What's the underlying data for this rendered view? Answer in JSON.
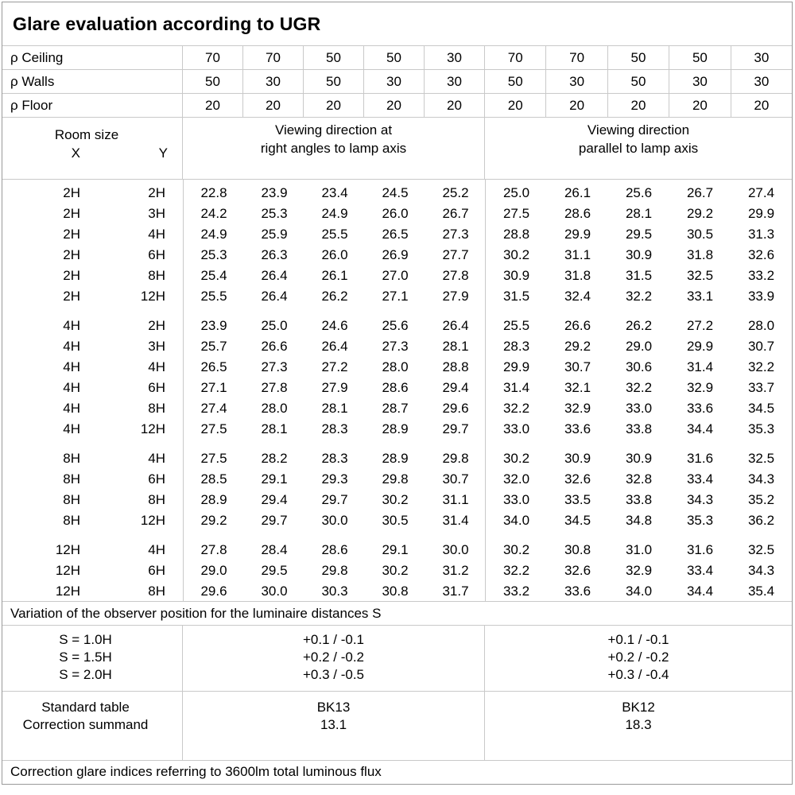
{
  "title": "Glare evaluation according to UGR",
  "grid_color": "#c9c9c9",
  "border_color": "#9a9a9a",
  "reflectances": {
    "rows": [
      {
        "label": "ρ Ceiling",
        "values": [
          70,
          70,
          50,
          50,
          30,
          70,
          70,
          50,
          50,
          30
        ]
      },
      {
        "label": "ρ Walls",
        "values": [
          50,
          30,
          50,
          30,
          30,
          50,
          30,
          50,
          30,
          30
        ]
      },
      {
        "label": "ρ Floor",
        "values": [
          20,
          20,
          20,
          20,
          20,
          20,
          20,
          20,
          20,
          20
        ]
      }
    ]
  },
  "header": {
    "room_size_label": "Room size",
    "x_label": "X",
    "y_label": "Y",
    "group1_line1": "Viewing direction at",
    "group1_line2": "right angles to lamp axis",
    "group2_line1": "Viewing direction",
    "group2_line2": "parallel to lamp axis"
  },
  "ugr_table": {
    "groups": [
      {
        "rows": [
          {
            "x": "2H",
            "y": "2H",
            "right_angles": [
              "22.8",
              "23.9",
              "23.4",
              "24.5",
              "25.2"
            ],
            "parallel": [
              "25.0",
              "26.1",
              "25.6",
              "26.7",
              "27.4"
            ]
          },
          {
            "x": "2H",
            "y": "3H",
            "right_angles": [
              "24.2",
              "25.3",
              "24.9",
              "26.0",
              "26.7"
            ],
            "parallel": [
              "27.5",
              "28.6",
              "28.1",
              "29.2",
              "29.9"
            ]
          },
          {
            "x": "2H",
            "y": "4H",
            "right_angles": [
              "24.9",
              "25.9",
              "25.5",
              "26.5",
              "27.3"
            ],
            "parallel": [
              "28.8",
              "29.9",
              "29.5",
              "30.5",
              "31.3"
            ]
          },
          {
            "x": "2H",
            "y": "6H",
            "right_angles": [
              "25.3",
              "26.3",
              "26.0",
              "26.9",
              "27.7"
            ],
            "parallel": [
              "30.2",
              "31.1",
              "30.9",
              "31.8",
              "32.6"
            ]
          },
          {
            "x": "2H",
            "y": "8H",
            "right_angles": [
              "25.4",
              "26.4",
              "26.1",
              "27.0",
              "27.8"
            ],
            "parallel": [
              "30.9",
              "31.8",
              "31.5",
              "32.5",
              "33.2"
            ]
          },
          {
            "x": "2H",
            "y": "12H",
            "right_angles": [
              "25.5",
              "26.4",
              "26.2",
              "27.1",
              "27.9"
            ],
            "parallel": [
              "31.5",
              "32.4",
              "32.2",
              "33.1",
              "33.9"
            ]
          }
        ]
      },
      {
        "rows": [
          {
            "x": "4H",
            "y": "2H",
            "right_angles": [
              "23.9",
              "25.0",
              "24.6",
              "25.6",
              "26.4"
            ],
            "parallel": [
              "25.5",
              "26.6",
              "26.2",
              "27.2",
              "28.0"
            ]
          },
          {
            "x": "4H",
            "y": "3H",
            "right_angles": [
              "25.7",
              "26.6",
              "26.4",
              "27.3",
              "28.1"
            ],
            "parallel": [
              "28.3",
              "29.2",
              "29.0",
              "29.9",
              "30.7"
            ]
          },
          {
            "x": "4H",
            "y": "4H",
            "right_angles": [
              "26.5",
              "27.3",
              "27.2",
              "28.0",
              "28.8"
            ],
            "parallel": [
              "29.9",
              "30.7",
              "30.6",
              "31.4",
              "32.2"
            ]
          },
          {
            "x": "4H",
            "y": "6H",
            "right_angles": [
              "27.1",
              "27.8",
              "27.9",
              "28.6",
              "29.4"
            ],
            "parallel": [
              "31.4",
              "32.1",
              "32.2",
              "32.9",
              "33.7"
            ]
          },
          {
            "x": "4H",
            "y": "8H",
            "right_angles": [
              "27.4",
              "28.0",
              "28.1",
              "28.7",
              "29.6"
            ],
            "parallel": [
              "32.2",
              "32.9",
              "33.0",
              "33.6",
              "34.5"
            ]
          },
          {
            "x": "4H",
            "y": "12H",
            "right_angles": [
              "27.5",
              "28.1",
              "28.3",
              "28.9",
              "29.7"
            ],
            "parallel": [
              "33.0",
              "33.6",
              "33.8",
              "34.4",
              "35.3"
            ]
          }
        ]
      },
      {
        "rows": [
          {
            "x": "8H",
            "y": "4H",
            "right_angles": [
              "27.5",
              "28.2",
              "28.3",
              "28.9",
              "29.8"
            ],
            "parallel": [
              "30.2",
              "30.9",
              "30.9",
              "31.6",
              "32.5"
            ]
          },
          {
            "x": "8H",
            "y": "6H",
            "right_angles": [
              "28.5",
              "29.1",
              "29.3",
              "29.8",
              "30.7"
            ],
            "parallel": [
              "32.0",
              "32.6",
              "32.8",
              "33.4",
              "34.3"
            ]
          },
          {
            "x": "8H",
            "y": "8H",
            "right_angles": [
              "28.9",
              "29.4",
              "29.7",
              "30.2",
              "31.1"
            ],
            "parallel": [
              "33.0",
              "33.5",
              "33.8",
              "34.3",
              "35.2"
            ]
          },
          {
            "x": "8H",
            "y": "12H",
            "right_angles": [
              "29.2",
              "29.7",
              "30.0",
              "30.5",
              "31.4"
            ],
            "parallel": [
              "34.0",
              "34.5",
              "34.8",
              "35.3",
              "36.2"
            ]
          }
        ]
      },
      {
        "rows": [
          {
            "x": "12H",
            "y": "4H",
            "right_angles": [
              "27.8",
              "28.4",
              "28.6",
              "29.1",
              "30.0"
            ],
            "parallel": [
              "30.2",
              "30.8",
              "31.0",
              "31.6",
              "32.5"
            ]
          },
          {
            "x": "12H",
            "y": "6H",
            "right_angles": [
              "29.0",
              "29.5",
              "29.8",
              "30.2",
              "31.2"
            ],
            "parallel": [
              "32.2",
              "32.6",
              "32.9",
              "33.4",
              "34.3"
            ]
          },
          {
            "x": "12H",
            "y": "8H",
            "right_angles": [
              "29.6",
              "30.0",
              "30.3",
              "30.8",
              "31.7"
            ],
            "parallel": [
              "33.2",
              "33.6",
              "34.0",
              "34.4",
              "35.4"
            ]
          }
        ]
      }
    ]
  },
  "variation_note": "Variation of the observer position for the luminaire distances S",
  "s_variation": {
    "labels": [
      "S = 1.0H",
      "S = 1.5H",
      "S = 2.0H"
    ],
    "right_angles": [
      "+0.1 / -0.1",
      "+0.2 / -0.2",
      "+0.3 / -0.5"
    ],
    "parallel": [
      "+0.1 / -0.1",
      "+0.2 / -0.2",
      "+0.3 / -0.4"
    ]
  },
  "standard": {
    "row_labels": [
      "Standard table",
      "Correction summand"
    ],
    "right_angles": [
      "BK13",
      "13.1"
    ],
    "parallel": [
      "BK12",
      "18.3"
    ]
  },
  "footer_note": "Correction glare indices referring to 3600lm total luminous flux"
}
